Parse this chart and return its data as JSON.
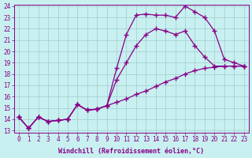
{
  "xlabel": "Windchill (Refroidissement éolien,°C)",
  "ylabel": "",
  "bg_color": "#c8f0f0",
  "line_color": "#880088",
  "xlim": [
    -0.5,
    23.5
  ],
  "ylim": [
    13,
    24
  ],
  "xticks": [
    0,
    1,
    2,
    3,
    4,
    5,
    6,
    7,
    8,
    9,
    10,
    11,
    12,
    13,
    14,
    15,
    16,
    17,
    18,
    19,
    20,
    21,
    22,
    23
  ],
  "yticks": [
    13,
    14,
    15,
    16,
    17,
    18,
    19,
    20,
    21,
    22,
    23,
    24
  ],
  "line1_x": [
    0,
    1,
    2,
    3,
    4,
    5,
    6,
    7,
    8,
    9,
    10,
    11,
    12,
    13,
    14,
    15,
    16,
    17,
    18,
    19,
    20,
    21,
    22,
    23
  ],
  "line1_y": [
    14.2,
    13.2,
    14.2,
    13.8,
    13.9,
    14.0,
    15.3,
    14.8,
    14.9,
    15.2,
    15.5,
    15.8,
    16.2,
    16.5,
    16.9,
    17.3,
    17.6,
    18.0,
    18.3,
    18.5,
    18.6,
    18.7,
    18.7,
    18.7
  ],
  "line2_x": [
    0,
    1,
    2,
    3,
    4,
    5,
    6,
    7,
    8,
    9,
    10,
    11,
    12,
    13,
    14,
    15,
    16,
    17,
    18,
    19,
    20,
    21,
    22,
    23
  ],
  "line2_y": [
    14.2,
    13.2,
    14.2,
    13.8,
    13.9,
    14.0,
    15.3,
    14.8,
    14.9,
    15.2,
    17.5,
    19.0,
    20.5,
    21.5,
    22.0,
    21.8,
    21.5,
    21.8,
    20.5,
    19.5,
    18.7,
    18.7,
    18.7,
    18.7
  ],
  "line3_x": [
    0,
    1,
    2,
    3,
    4,
    5,
    6,
    7,
    8,
    9,
    10,
    11,
    12,
    13,
    14,
    15,
    16,
    17,
    18,
    19,
    20,
    21,
    22,
    23
  ],
  "line3_y": [
    14.2,
    13.2,
    14.2,
    13.8,
    13.9,
    14.0,
    15.3,
    14.8,
    14.9,
    15.2,
    18.5,
    21.5,
    23.2,
    23.3,
    23.2,
    23.2,
    23.0,
    24.0,
    23.5,
    23.0,
    21.8,
    19.3,
    19.0,
    18.7
  ],
  "marker": "+",
  "markersize": 4.0,
  "linewidth": 0.9,
  "grid_color": "#a0cccc",
  "tick_fontsize": 5.5,
  "label_fontsize": 6.0
}
